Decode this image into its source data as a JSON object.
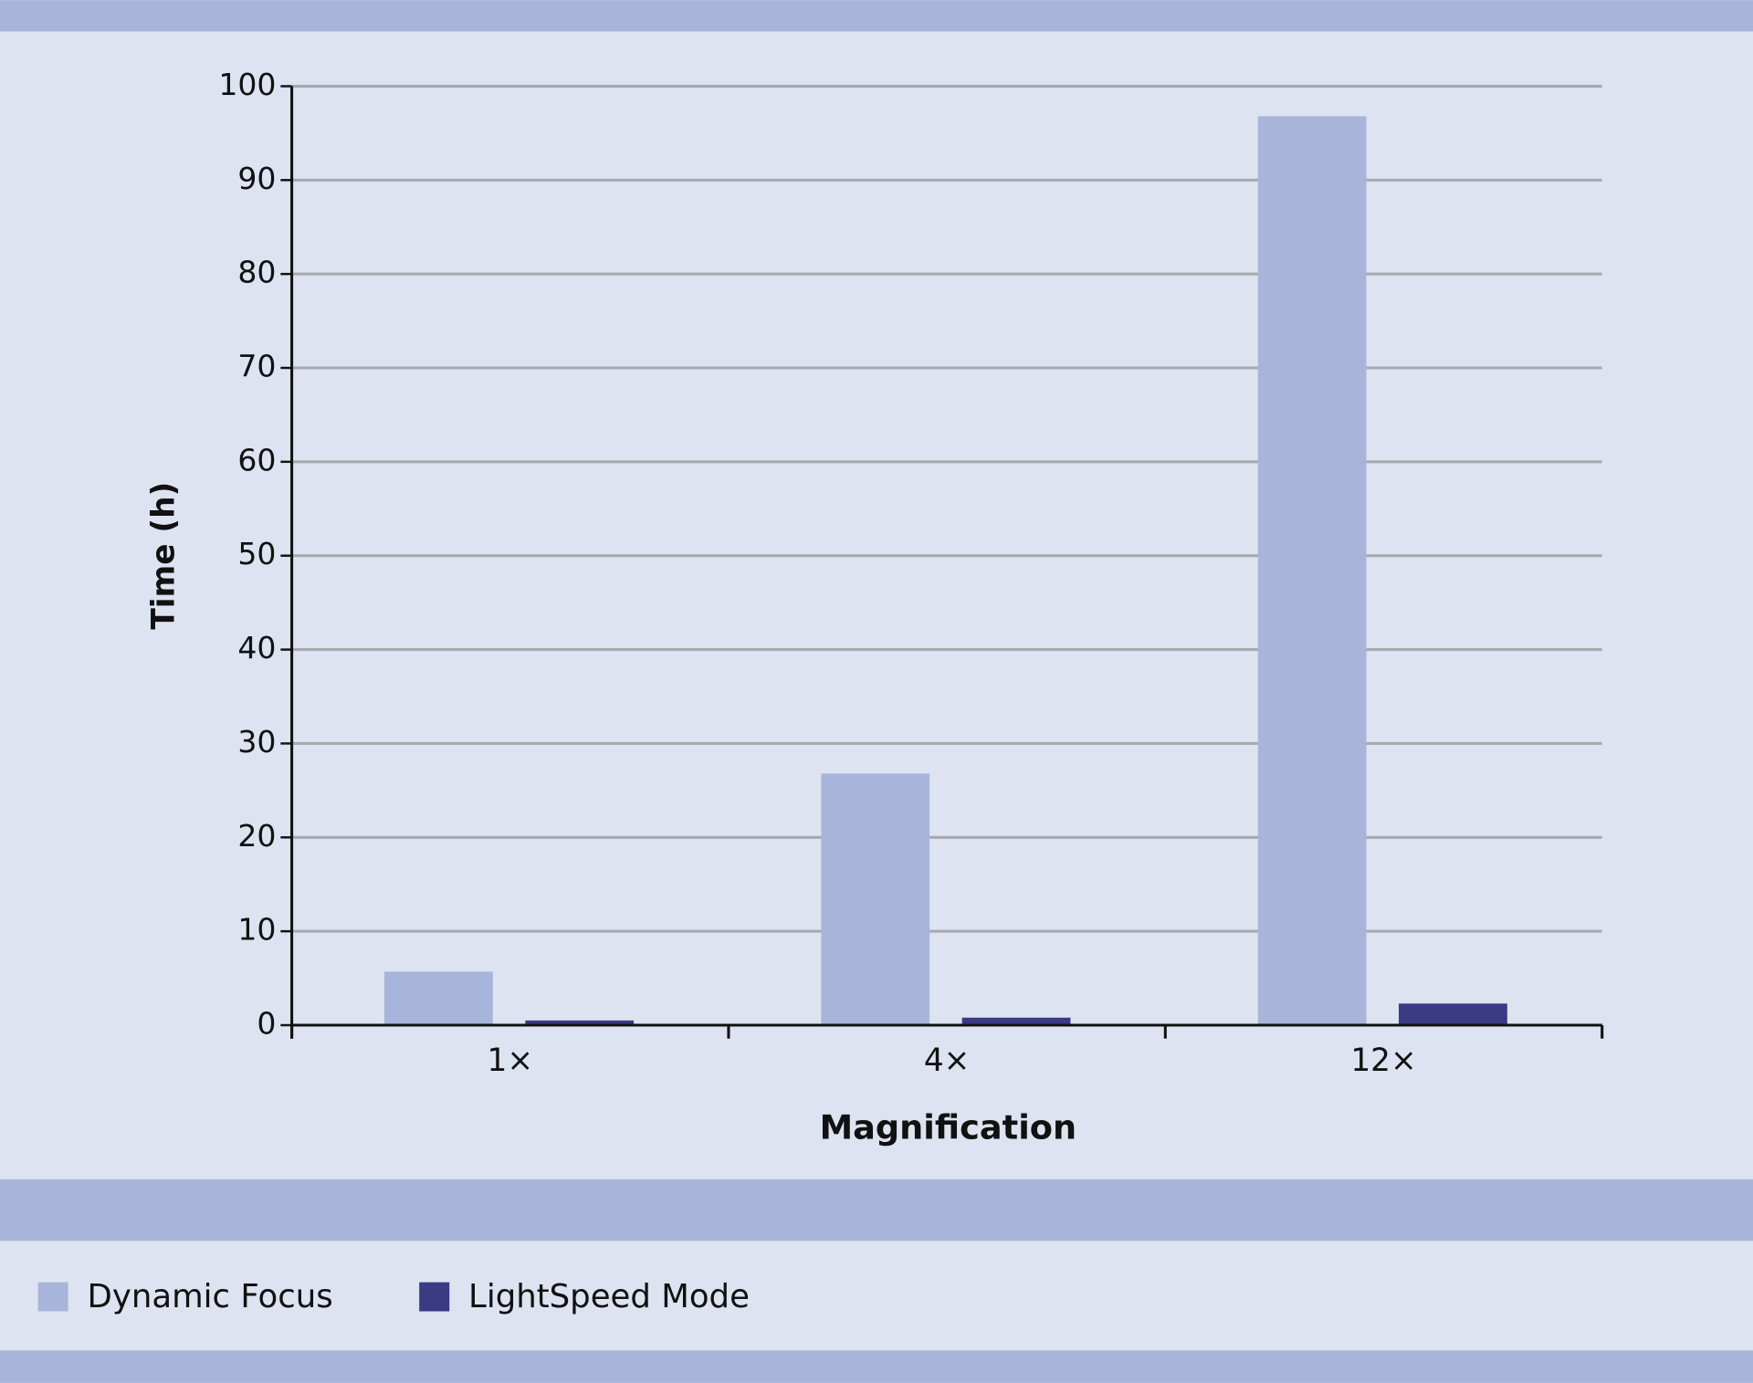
{
  "chart_data": {
    "type": "bar",
    "x_label": "Magnification",
    "y_label": "Time (h)",
    "categories": [
      "1×",
      "4×",
      "12×"
    ],
    "series": [
      {
        "name": "Dynamic Focus",
        "color": "#a8b5da",
        "values": [
          5.7,
          26.8,
          96.8
        ]
      },
      {
        "name": "LightSpeed Mode",
        "color": "#3a3a85",
        "values": [
          0.5,
          0.8,
          2.3
        ]
      }
    ],
    "ylim": [
      0,
      100
    ],
    "yticks": [
      0,
      10,
      20,
      30,
      40,
      50,
      60,
      70,
      80,
      90,
      100
    ],
    "grid": true
  }
}
